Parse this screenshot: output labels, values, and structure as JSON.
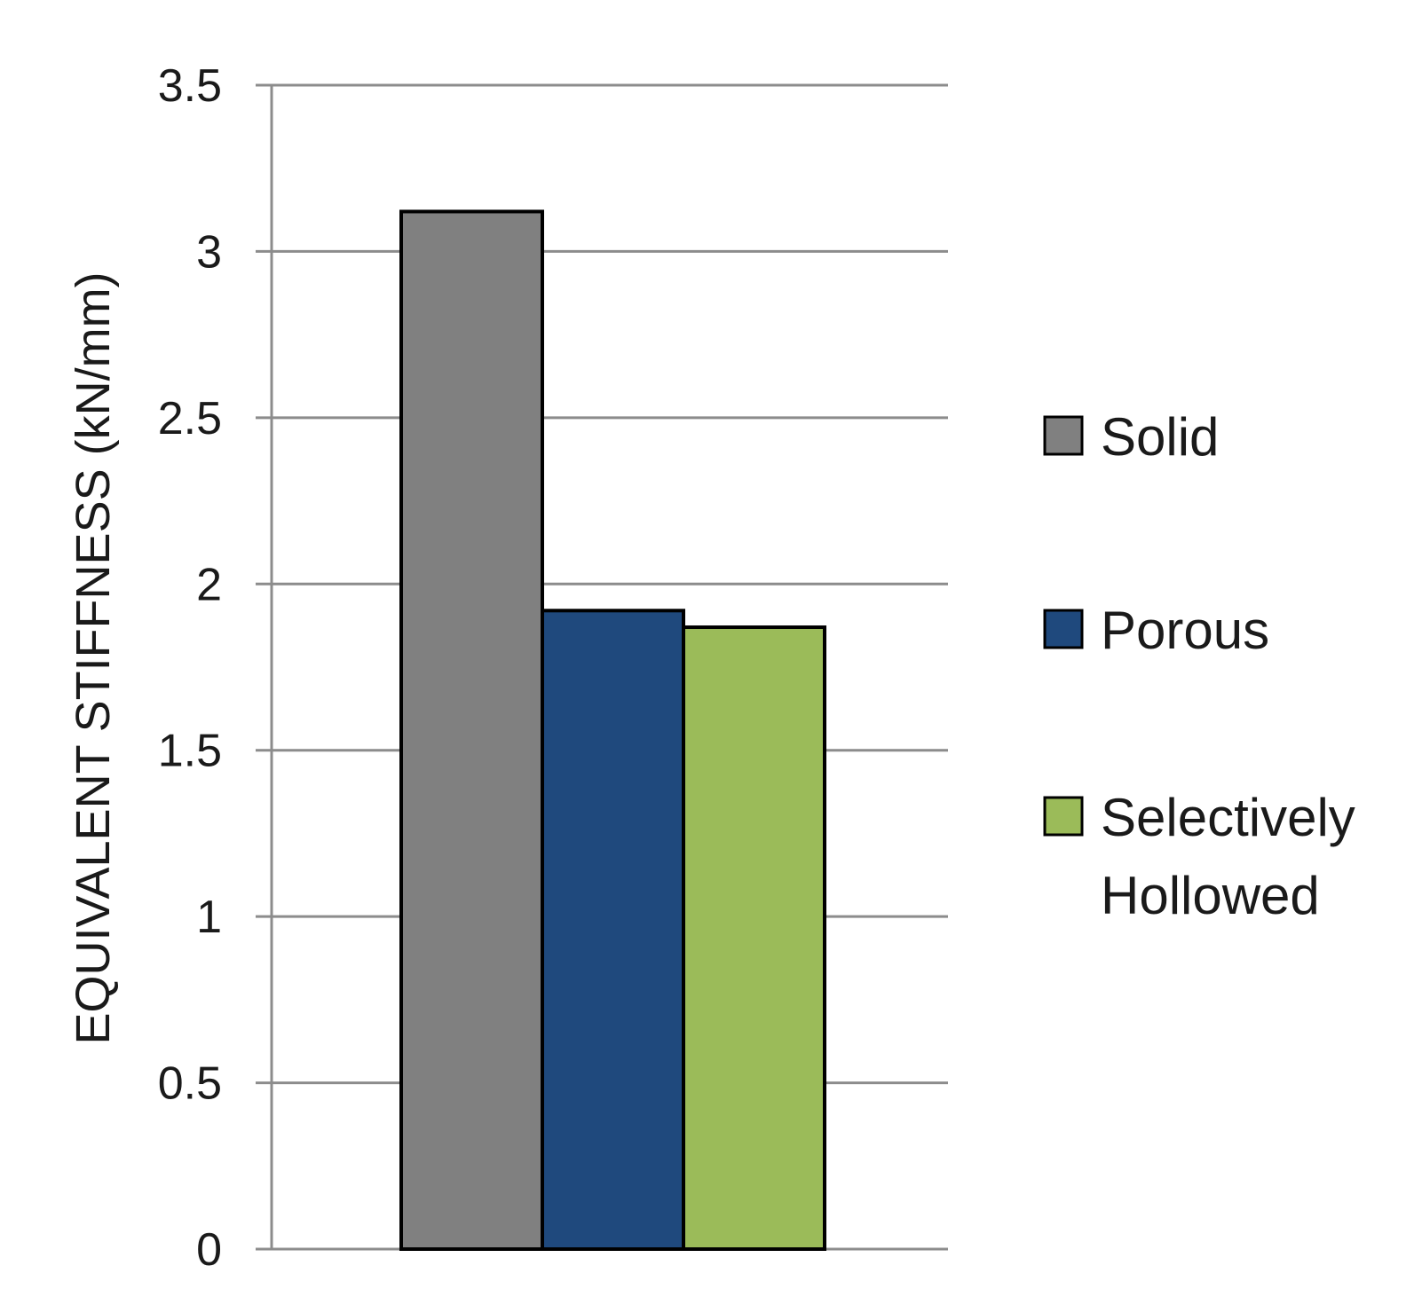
{
  "chart_data": {
    "type": "bar",
    "title": "",
    "xlabel": "",
    "ylabel": "EQUIVALENT STIFFNESS  (kN/mm)",
    "ylim": [
      0,
      3.5
    ],
    "yticks": [
      "0",
      "0.5",
      "1",
      "1.5",
      "2",
      "2.5",
      "3",
      "3.5"
    ],
    "ytick_values": [
      0,
      0.5,
      1,
      1.5,
      2,
      2.5,
      3,
      3.5
    ],
    "grid": true,
    "legend_position": "right",
    "series": [
      {
        "name": "Solid",
        "values": [
          3.12
        ],
        "color": "#808080"
      },
      {
        "name": "Porous",
        "values": [
          1.92
        ],
        "color": "#1F497D"
      },
      {
        "name": "Selectively Hollowed",
        "values": [
          1.87
        ],
        "color": "#9BBB59"
      }
    ],
    "legend": [
      {
        "lines": [
          "Solid"
        ],
        "color": "#808080"
      },
      {
        "lines": [
          "Porous"
        ],
        "color": "#1F497D"
      },
      {
        "lines": [
          "Selectively",
          "Hollowed"
        ],
        "color": "#9BBB59"
      }
    ],
    "colors": {
      "grid": "#8c8c8c",
      "bar_outline": "#000000"
    }
  }
}
